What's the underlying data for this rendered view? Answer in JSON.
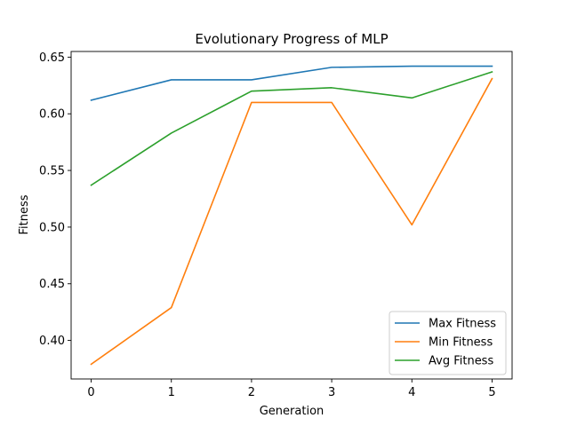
{
  "chart_data": {
    "type": "line",
    "title": "Evolutionary Progress of MLP",
    "xlabel": "Generation",
    "ylabel": "Fitness",
    "x": [
      0,
      1,
      2,
      3,
      4,
      5
    ],
    "xticks": [
      0,
      1,
      2,
      3,
      4,
      5
    ],
    "yticks": [
      0.4,
      0.45,
      0.5,
      0.55,
      0.6,
      0.65
    ],
    "xlim": [
      -0.25,
      5.25
    ],
    "ylim": [
      0.366,
      0.655
    ],
    "grid": false,
    "legend_position": "lower-right",
    "series": [
      {
        "name": "Max Fitness",
        "color": "#1f77b4",
        "values": [
          0.612,
          0.63,
          0.63,
          0.641,
          0.642,
          0.642
        ]
      },
      {
        "name": "Min Fitness",
        "color": "#ff7f0e",
        "values": [
          0.379,
          0.429,
          0.61,
          0.61,
          0.502,
          0.631
        ]
      },
      {
        "name": "Avg Fitness",
        "color": "#2ca02c",
        "values": [
          0.537,
          0.583,
          0.62,
          0.623,
          0.614,
          0.637
        ]
      }
    ]
  }
}
